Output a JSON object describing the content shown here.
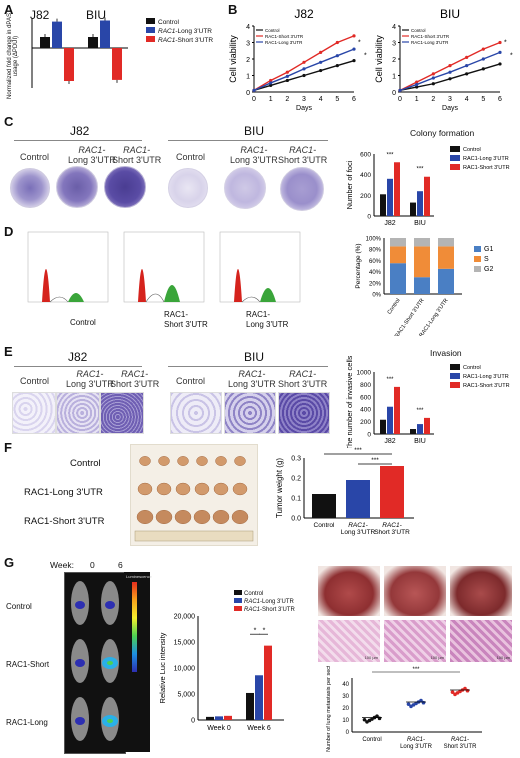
{
  "colors": {
    "control": "#111111",
    "long": "#2946a8",
    "short": "#e12a26",
    "g1": "#4a7fc4",
    "s": "#f08c38",
    "g2": "#b4b4b4"
  },
  "legend_labels": {
    "control": "Control",
    "long_prefix": "RAC1",
    "long_suffix": "-Long 3'UTR",
    "short_prefix": "RAC1",
    "short_suffix": "-Short 3'UTR"
  },
  "panelA": {
    "letter": "A",
    "cell_lines": [
      "J82",
      "BIU"
    ],
    "ylabel": "Normalized fold change in dPAS usage (ΔPDUI)"
  },
  "panelB": {
    "letter": "B",
    "titles": [
      "J82",
      "BIU"
    ],
    "ylabel": "Cell viability",
    "xlabel": "Days",
    "yticks": [
      "0",
      "1",
      "2",
      "3",
      "4"
    ],
    "xticks": [
      "0",
      "1",
      "2",
      "3",
      "4",
      "5",
      "6"
    ]
  },
  "panelC": {
    "letter": "C",
    "groups": [
      "J82",
      "BIU"
    ],
    "dish_labels": {
      "control": "Control",
      "long_a": "RAC1-",
      "long_b": "Long 3'UTR",
      "short_a": "RAC1-",
      "short_b": "Short 3'UTR"
    },
    "chart_title": "Colony formation",
    "ylabel": "Number of foci",
    "yticks": [
      "0",
      "200",
      "400",
      "600"
    ],
    "sig": "***"
  },
  "panelD": {
    "letter": "D",
    "labels": [
      "Control",
      "RAC1-",
      "Short 3'UTR",
      "RAC1-",
      "Long 3'UTR"
    ],
    "ylabel": "Percentage (%)",
    "yticks": [
      "0%",
      "20%",
      "40%",
      "60%",
      "80%",
      "100%"
    ],
    "phases": [
      "G1",
      "S",
      "G2"
    ],
    "bars": [
      "Control",
      "RAC1-Short 3'UTR",
      "RAC1-Long 3'UTR"
    ]
  },
  "panelE": {
    "letter": "E",
    "groups": [
      "J82",
      "BIU"
    ],
    "chart_title": "Invasion",
    "ylabel": "The number of invasive cells",
    "yticks": [
      "0",
      "200",
      "400",
      "600",
      "800",
      "1000"
    ]
  },
  "panelF": {
    "letter": "F",
    "rows": [
      "Control",
      "RAC1-Long 3'UTR",
      "RAC1-Short 3'UTR"
    ],
    "ylabel": "Tumor weight (g)",
    "yticks": [
      "0.0",
      "0.1",
      "0.2",
      "0.3"
    ],
    "xlabels": [
      "Control",
      "RAC1-",
      "Long 3'UTR",
      "RAC1-",
      "Short 3'UTR"
    ]
  },
  "panelG": {
    "letter": "G",
    "week_label": "Week:",
    "weeks": [
      "0",
      "6"
    ],
    "mice": [
      "Control",
      "RAC1-Short",
      "RAC1-Long"
    ],
    "lum_label": "Luminescence",
    "ylabel": "Relative Luc intensity",
    "yticks": [
      "0",
      "5,000",
      "10,000",
      "15,000",
      "20,000"
    ],
    "xlabels": [
      "Week 0",
      "Week 6"
    ],
    "scale_labels": [
      "100 μm",
      "100 μm",
      "100 μm"
    ],
    "meta_ylabel": "Number of lung metastasis per section",
    "meta_xlabels": [
      "Control",
      "RAC1-",
      "Long 3'UTR",
      "RAC1-",
      "Short 3'UTR"
    ]
  },
  "chart_data": [
    {
      "panel": "A",
      "type": "bar",
      "categories": [
        "J82",
        "BIU"
      ],
      "series": [
        {
          "name": "Control",
          "values": [
            1,
            1
          ]
        },
        {
          "name": "RAC1-Long 3'UTR",
          "values": [
            2.4,
            2.5
          ]
        },
        {
          "name": "RAC1-Short 3'UTR",
          "values": [
            -3.0,
            -2.9
          ]
        }
      ],
      "ylim": [
        -3.5,
        3
      ]
    },
    {
      "panel": "B-J82",
      "type": "line",
      "x": [
        0,
        1,
        2,
        3,
        4,
        5,
        6
      ],
      "series": [
        {
          "name": "Control",
          "values": [
            0.1,
            0.4,
            0.7,
            1.0,
            1.3,
            1.6,
            1.9
          ]
        },
        {
          "name": "RAC1-Short 3'UTR",
          "values": [
            0.1,
            0.7,
            1.2,
            1.8,
            2.4,
            3.0,
            3.4
          ]
        },
        {
          "name": "RAC1-Long 3'UTR",
          "values": [
            0.1,
            0.55,
            0.95,
            1.4,
            1.8,
            2.2,
            2.6
          ]
        }
      ],
      "ylim": [
        0,
        4
      ]
    },
    {
      "panel": "B-BIU",
      "type": "line",
      "x": [
        0,
        1,
        2,
        3,
        4,
        5,
        6
      ],
      "series": [
        {
          "name": "Control",
          "values": [
            0.1,
            0.3,
            0.5,
            0.8,
            1.1,
            1.4,
            1.7
          ]
        },
        {
          "name": "RAC1-Short 3'UTR",
          "values": [
            0.1,
            0.6,
            1.1,
            1.6,
            2.1,
            2.6,
            3.0
          ]
        },
        {
          "name": "RAC1-Long 3'UTR",
          "values": [
            0.1,
            0.45,
            0.85,
            1.2,
            1.6,
            2.0,
            2.4
          ]
        }
      ],
      "ylim": [
        0,
        4
      ]
    },
    {
      "panel": "C",
      "type": "bar",
      "categories": [
        "J82",
        "BIU"
      ],
      "series": [
        {
          "name": "Control",
          "values": [
            210,
            130
          ]
        },
        {
          "name": "RAC1-Long 3'UTR",
          "values": [
            360,
            240
          ]
        },
        {
          "name": "RAC1-Short 3'UTR",
          "values": [
            520,
            380
          ]
        }
      ],
      "ylim": [
        0,
        600
      ]
    },
    {
      "panel": "D",
      "type": "bar",
      "categories": [
        "Control",
        "RAC1-Short 3'UTR",
        "RAC1-Long 3'UTR"
      ],
      "series": [
        {
          "name": "G1",
          "values": [
            55,
            30,
            45
          ]
        },
        {
          "name": "S",
          "values": [
            30,
            55,
            40
          ]
        },
        {
          "name": "G2",
          "values": [
            15,
            15,
            15
          ]
        }
      ],
      "ylim": [
        0,
        100
      ]
    },
    {
      "panel": "E",
      "type": "bar",
      "categories": [
        "J82",
        "BIU"
      ],
      "series": [
        {
          "name": "Control",
          "values": [
            230,
            80
          ]
        },
        {
          "name": "RAC1-Long 3'UTR",
          "values": [
            440,
            160
          ]
        },
        {
          "name": "RAC1-Short 3'UTR",
          "values": [
            760,
            260
          ]
        }
      ],
      "ylim": [
        0,
        1000
      ]
    },
    {
      "panel": "F",
      "type": "bar",
      "categories": [
        "Control",
        "RAC1-Long 3'UTR",
        "RAC1-Short 3'UTR"
      ],
      "values": [
        0.12,
        0.19,
        0.26
      ],
      "ylim": [
        0,
        0.3
      ]
    },
    {
      "panel": "G-luc",
      "type": "bar",
      "categories": [
        "Week 0",
        "Week 6"
      ],
      "series": [
        {
          "name": "Control",
          "values": [
            600,
            5200
          ]
        },
        {
          "name": "RAC1-Long 3'UTR",
          "values": [
            700,
            8600
          ]
        },
        {
          "name": "RAC1-Short 3'UTR",
          "values": [
            800,
            14300
          ]
        }
      ],
      "ylim": [
        0,
        20000
      ]
    },
    {
      "panel": "G-meta",
      "type": "scatter",
      "categories": [
        "Control",
        "RAC1-Long 3'UTR",
        "RAC1-Short 3'UTR"
      ],
      "values": [
        12,
        25,
        35
      ],
      "ylim": [
        0,
        45
      ]
    }
  ]
}
